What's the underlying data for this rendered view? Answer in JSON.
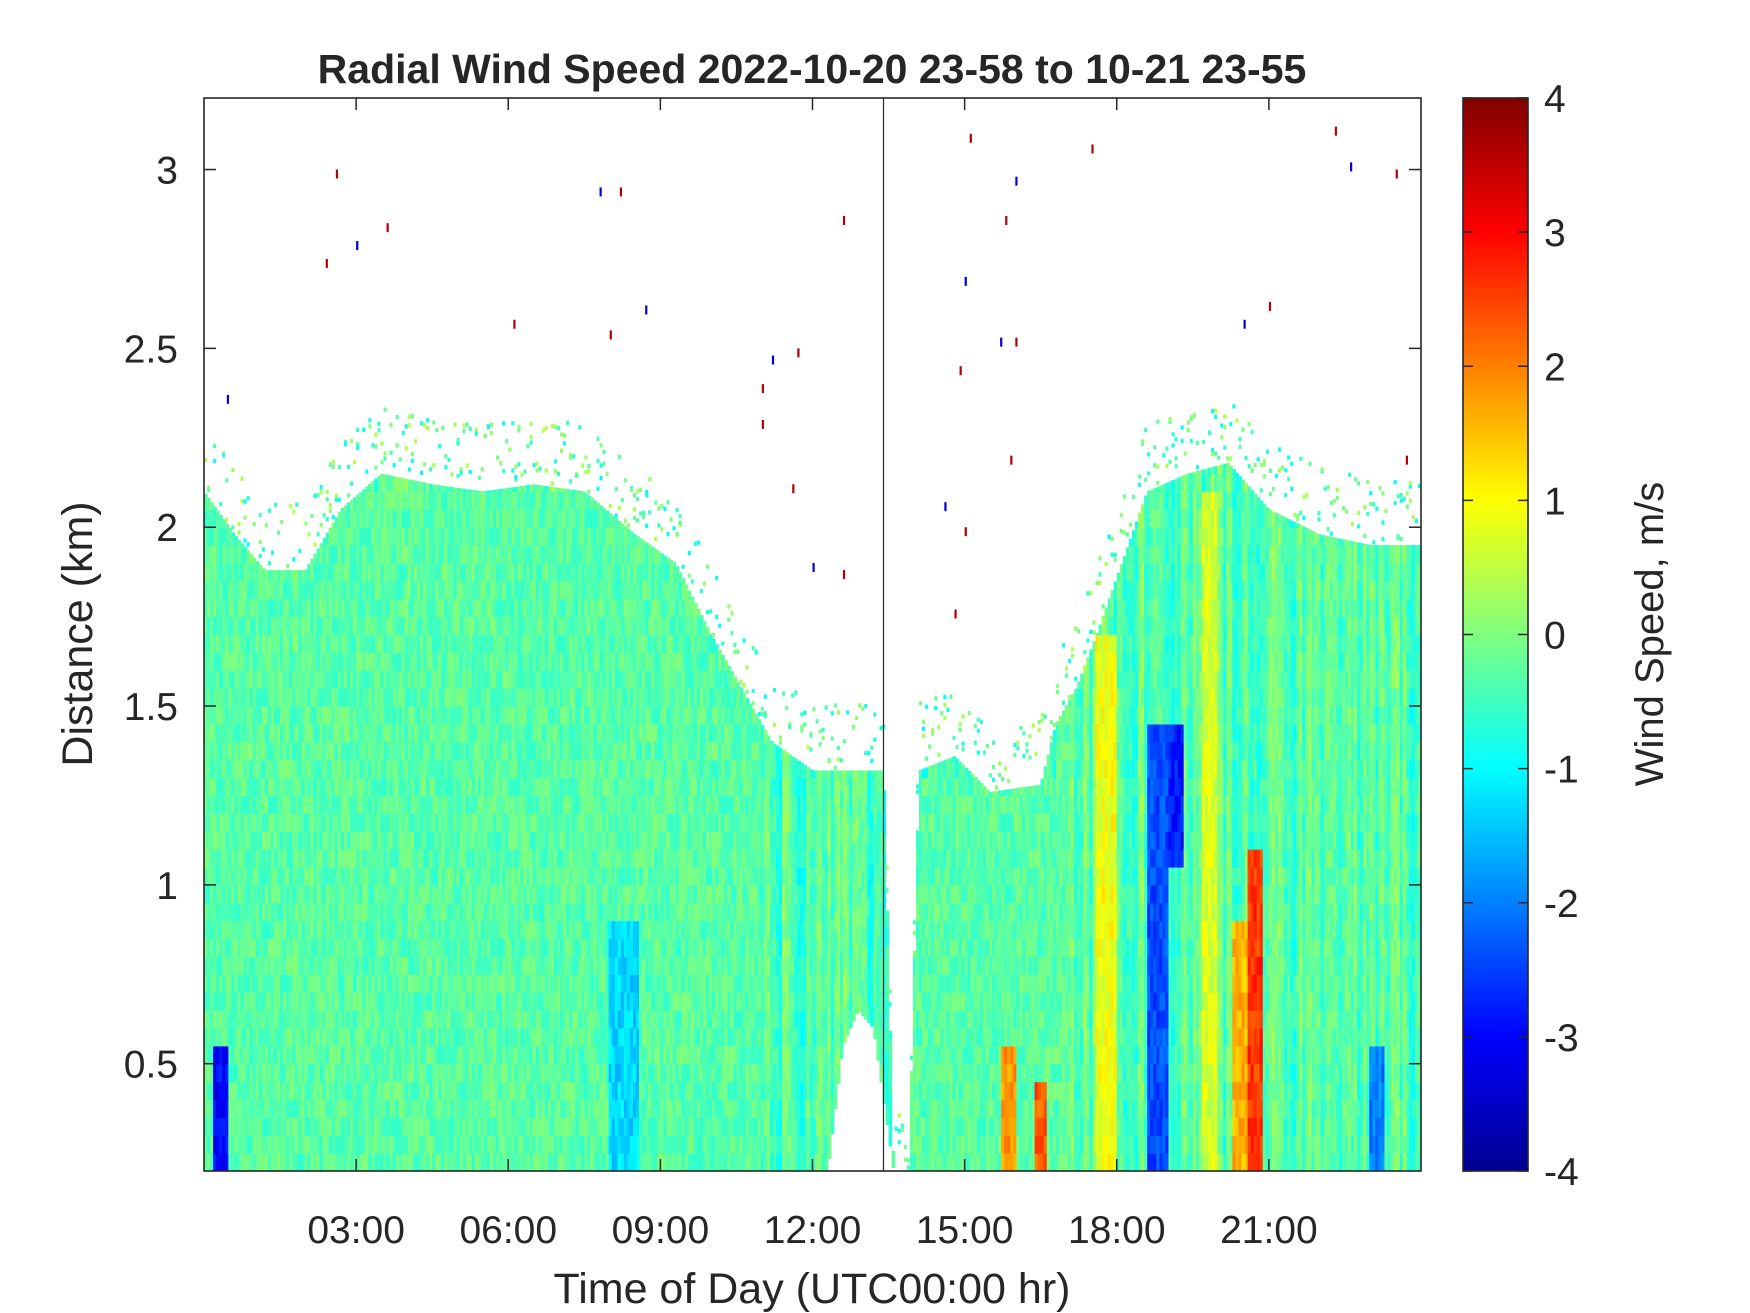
{
  "chart_data": {
    "type": "heatmap",
    "title": "Radial Wind Speed 2022-10-20 23-58 to 10-21 23-55",
    "xlabel": "Time of Day (UTC00:00 hr)",
    "ylabel": "Distance (km)",
    "colorbar_label": "Wind Speed, m/s",
    "x_unit": "hours UTC",
    "xlim": [
      0,
      24
    ],
    "ylim": [
      0.2,
      3.2
    ],
    "clim": [
      -4,
      4
    ],
    "colormap": "jet",
    "x_ticks": [
      {
        "value": 3,
        "label": "03:00"
      },
      {
        "value": 6,
        "label": "06:00"
      },
      {
        "value": 9,
        "label": "09:00"
      },
      {
        "value": 12,
        "label": "12:00"
      },
      {
        "value": 15,
        "label": "15:00"
      },
      {
        "value": 18,
        "label": "18:00"
      },
      {
        "value": 21,
        "label": "21:00"
      }
    ],
    "y_ticks": [
      {
        "value": 0.5,
        "label": "0.5"
      },
      {
        "value": 1,
        "label": "1"
      },
      {
        "value": 1.5,
        "label": "1.5"
      },
      {
        "value": 2,
        "label": "2"
      },
      {
        "value": 2.5,
        "label": "2.5"
      },
      {
        "value": 3,
        "label": "3"
      }
    ],
    "colorbar_ticks": [
      {
        "value": 4,
        "label": "4"
      },
      {
        "value": 3,
        "label": "3"
      },
      {
        "value": 2,
        "label": "2"
      },
      {
        "value": 1,
        "label": "1"
      },
      {
        "value": 0,
        "label": "0"
      },
      {
        "value": -1,
        "label": "-1"
      },
      {
        "value": -2,
        "label": "-2"
      },
      {
        "value": -3,
        "label": "-3"
      },
      {
        "value": -4,
        "label": "-4"
      }
    ],
    "vertical_marker_x": 13.4,
    "data_top_profile": [
      [
        0.0,
        2.1
      ],
      [
        0.6,
        1.98
      ],
      [
        1.2,
        1.88
      ],
      [
        2.0,
        1.88
      ],
      [
        2.7,
        2.05
      ],
      [
        3.5,
        2.15
      ],
      [
        4.5,
        2.12
      ],
      [
        5.5,
        2.1
      ],
      [
        6.5,
        2.12
      ],
      [
        7.5,
        2.1
      ],
      [
        8.5,
        1.98
      ],
      [
        9.3,
        1.9
      ],
      [
        10.0,
        1.7
      ],
      [
        10.6,
        1.55
      ],
      [
        11.2,
        1.4
      ],
      [
        12.0,
        1.32
      ],
      [
        13.4,
        1.32
      ],
      [
        13.6,
        0.2
      ],
      [
        13.9,
        0.2
      ],
      [
        14.1,
        1.32
      ],
      [
        14.8,
        1.36
      ],
      [
        15.5,
        1.26
      ],
      [
        16.5,
        1.28
      ],
      [
        16.8,
        1.45
      ],
      [
        17.2,
        1.55
      ],
      [
        17.6,
        1.7
      ],
      [
        18.1,
        1.9
      ],
      [
        18.6,
        2.1
      ],
      [
        19.4,
        2.15
      ],
      [
        20.2,
        2.18
      ],
      [
        21.0,
        2.05
      ],
      [
        22.0,
        1.98
      ],
      [
        23.0,
        1.95
      ],
      [
        24.0,
        1.95
      ]
    ],
    "data_gap": {
      "x_start": 12.3,
      "x_end": 13.9,
      "profile": [
        [
          12.3,
          0.2
        ],
        [
          12.6,
          0.55
        ],
        [
          12.9,
          0.65
        ],
        [
          13.2,
          0.6
        ],
        [
          13.6,
          0.2
        ]
      ]
    },
    "features": [
      {
        "x_start": 0.0,
        "x_end": 11.0,
        "y_start": 0.2,
        "y_end": 2.1,
        "value": -0.3
      },
      {
        "x_start": 13.9,
        "x_end": 17.0,
        "y_start": 0.2,
        "y_end": 1.3,
        "value": -0.3
      },
      {
        "x_start": 15.7,
        "x_end": 16.0,
        "y_start": 0.2,
        "y_end": 0.55,
        "value": 1.8
      },
      {
        "x_start": 16.4,
        "x_end": 16.6,
        "y_start": 0.2,
        "y_end": 0.45,
        "value": 2.3
      },
      {
        "x_start": 17.6,
        "x_end": 18.0,
        "y_start": 0.2,
        "y_end": 1.7,
        "value": 0.9
      },
      {
        "x_start": 18.6,
        "x_end": 19.0,
        "y_start": 0.2,
        "y_end": 1.45,
        "value": -2.4
      },
      {
        "x_start": 19.0,
        "x_end": 19.3,
        "y_start": 1.05,
        "y_end": 1.45,
        "value": -2.8
      },
      {
        "x_start": 19.7,
        "x_end": 20.0,
        "y_start": 0.2,
        "y_end": 2.1,
        "value": 0.7
      },
      {
        "x_start": 20.6,
        "x_end": 20.9,
        "y_start": 0.2,
        "y_end": 1.1,
        "value": 2.6
      },
      {
        "x_start": 20.3,
        "x_end": 20.6,
        "y_start": 0.2,
        "y_end": 0.9,
        "value": 1.6
      },
      {
        "x_start": 0.2,
        "x_end": 0.5,
        "y_start": 0.2,
        "y_end": 0.55,
        "value": -3.0
      },
      {
        "x_start": 8.0,
        "x_end": 8.6,
        "y_start": 0.2,
        "y_end": 0.9,
        "value": -1.3
      },
      {
        "x_start": 23.0,
        "x_end": 23.3,
        "y_start": 0.2,
        "y_end": 0.55,
        "value": -2.0
      }
    ],
    "sparse_points": [
      [
        0.45,
        2.37
      ],
      [
        2.4,
        2.75
      ],
      [
        2.6,
        3.0
      ],
      [
        3.0,
        2.8
      ],
      [
        3.6,
        2.85
      ],
      [
        6.1,
        2.58
      ],
      [
        7.8,
        2.95
      ],
      [
        8.0,
        2.55
      ],
      [
        8.2,
        2.95
      ],
      [
        8.7,
        2.62
      ],
      [
        11.0,
        2.4
      ],
      [
        11.0,
        2.3
      ],
      [
        11.2,
        2.48
      ],
      [
        11.6,
        2.12
      ],
      [
        11.7,
        2.5
      ],
      [
        12.0,
        1.9
      ],
      [
        12.6,
        1.88
      ],
      [
        12.6,
        2.87
      ],
      [
        14.6,
        2.07
      ],
      [
        14.8,
        1.77
      ],
      [
        14.9,
        2.45
      ],
      [
        15.0,
        2.7
      ],
      [
        15.0,
        2.0
      ],
      [
        15.1,
        3.1
      ],
      [
        15.7,
        2.53
      ],
      [
        15.8,
        2.87
      ],
      [
        15.9,
        2.2
      ],
      [
        16.0,
        2.98
      ],
      [
        16.0,
        2.53
      ],
      [
        17.5,
        3.07
      ],
      [
        20.5,
        2.58
      ],
      [
        21.0,
        2.63
      ],
      [
        22.3,
        3.12
      ],
      [
        22.6,
        3.02
      ],
      [
        23.5,
        3.0
      ],
      [
        23.7,
        2.2
      ]
    ]
  }
}
